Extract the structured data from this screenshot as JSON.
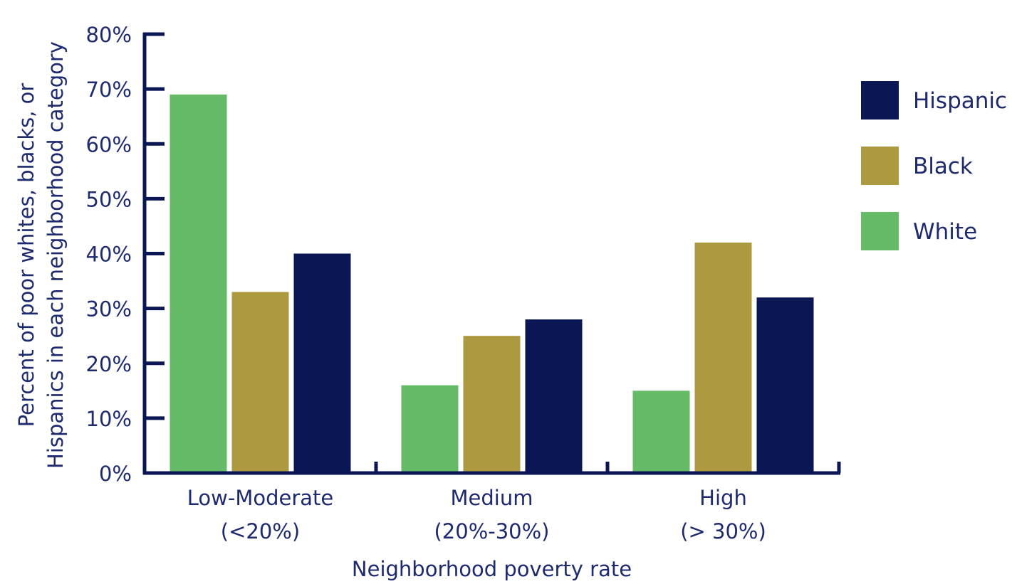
{
  "chart_data": {
    "type": "bar",
    "title": "",
    "xlabel": "Neighborhood poverty rate",
    "ylabel": "Percent of poor whites, blacks, or Hispanics in each neighborhood category",
    "ylabel_lines": [
      "Percent of poor whites, blacks, or",
      "Hispanics in each neighborhood category"
    ],
    "categories": [
      {
        "line1": "Low-Moderate",
        "line2": "(<20%)"
      },
      {
        "line1": "Medium",
        "line2": "(20%-30%)"
      },
      {
        "line1": "High",
        "line2": "(> 30%)"
      }
    ],
    "series": [
      {
        "name": "White",
        "color": "#66bb66",
        "values": [
          69,
          16,
          15
        ]
      },
      {
        "name": "Black",
        "color": "#ad9a40",
        "values": [
          33,
          25,
          42
        ]
      },
      {
        "name": "Hispanic",
        "color": "#0b1654",
        "values": [
          40,
          28,
          32
        ]
      }
    ],
    "legend_order": [
      "Hispanic",
      "Black",
      "White"
    ],
    "legend_position": "right",
    "ylim": [
      0,
      80
    ],
    "yticks": [
      {
        "value": 0,
        "label": "0%"
      },
      {
        "value": 10,
        "label": "10%"
      },
      {
        "value": 20,
        "label": "20%"
      },
      {
        "value": 30,
        "label": "30%"
      },
      {
        "value": 40,
        "label": "40%"
      },
      {
        "value": 50,
        "label": "50%"
      },
      {
        "value": 60,
        "label": "60%"
      },
      {
        "value": 70,
        "label": "70%"
      },
      {
        "value": 80,
        "label": "80%"
      }
    ],
    "grid": false,
    "axis_color": "#0b1654",
    "text_color": "#1e2a6e"
  }
}
